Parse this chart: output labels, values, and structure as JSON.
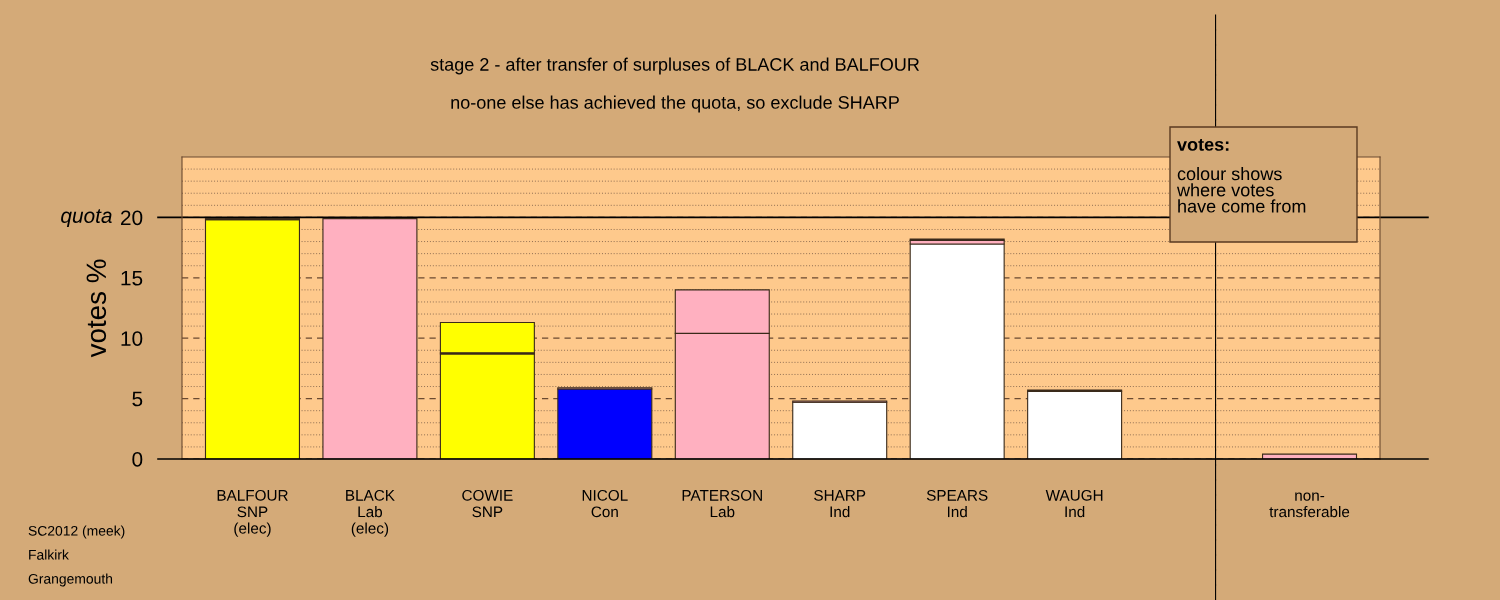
{
  "chart_data": {
    "type": "bar",
    "stacked": true,
    "title": "stage 2 - after transfer of surpluses of BLACK and BALFOUR",
    "subtitle": "no-one else has achieved the quota, so exclude SHARP",
    "ylabel": "votes %",
    "categories": [
      "BALFOUR\nSNP\n(elec)",
      "BLACK\nLab\n(elec)",
      "COWIE\nSNP",
      "NICOL\nCon",
      "PATERSON\nLab",
      "SHARP\nInd",
      "SPEARS\nInd",
      "WAUGH\nInd",
      null,
      "non-\ntransferable"
    ],
    "series": [
      {
        "colors": [
          "#ffff00",
          "#ffb0c0",
          "#ffff00",
          "#0000ff",
          "#ffb0c0",
          "#ffffff",
          "#ffffff",
          "#ffffff",
          null,
          "#ffb0c0"
        ],
        "values": [
          19.8,
          19.9,
          8.7,
          5.8,
          10.4,
          4.7,
          17.8,
          5.6,
          null,
          0
        ]
      },
      {
        "color": "#ffb0c0",
        "values": [
          0.1,
          0,
          0.1,
          0.1,
          3.6,
          0.1,
          0.3,
          0.1,
          null,
          0.4
        ]
      },
      {
        "color": "#ffff00",
        "values": [
          0,
          0,
          2.5,
          0,
          0,
          0,
          0.1,
          0,
          null,
          0
        ]
      }
    ],
    "ylim": [
      0,
      25
    ],
    "yticks": [
      0,
      {
        "value": 1,
        "label": null
      },
      {
        "value": 2,
        "label": null
      },
      {
        "value": 3,
        "label": null
      },
      {
        "value": 4,
        "label": null
      },
      5,
      {
        "value": 6,
        "label": null
      },
      {
        "value": 7,
        "label": null
      },
      {
        "value": 8,
        "label": null
      },
      {
        "value": 9,
        "label": null
      },
      10,
      {
        "value": 11,
        "label": null
      },
      {
        "value": 12,
        "label": null
      },
      {
        "value": 13,
        "label": null
      },
      {
        "value": 14,
        "label": null
      },
      15,
      {
        "value": 16,
        "label": null
      },
      {
        "value": 17,
        "label": null
      },
      {
        "value": 18,
        "label": null
      },
      {
        "value": 19,
        "label": null
      },
      20,
      {
        "value": 21,
        "label": null
      },
      {
        "value": 22,
        "label": null
      },
      {
        "value": 23,
        "label": null
      },
      {
        "value": 24,
        "label": null
      }
    ],
    "grid": "y",
    "ref_lines": [
      {
        "axis": "y",
        "value": 20,
        "label": "quota"
      }
    ],
    "annotations": [
      "votes:",
      "colour shows\nwhere votes\nhave come from",
      "SC2012 (meek)",
      "Falkirk",
      "Grangemouth"
    ]
  }
}
